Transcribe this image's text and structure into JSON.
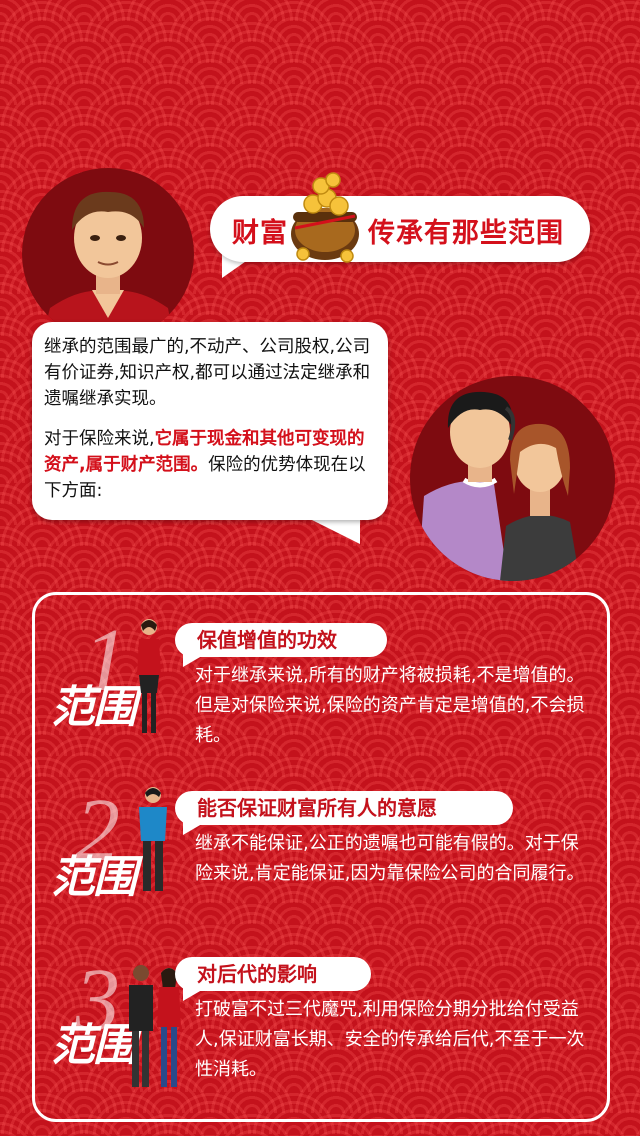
{
  "header": {
    "title_left": "财富",
    "title_right": "传承有那些范围"
  },
  "speech": {
    "para1": "继承的范围最广的,不动产、公司股权,公司有价证券,知识产权,都可以通过法定继承和遗嘱继承实现。",
    "para2_prefix": "对于保险来说,",
    "para2_highlight": "它属于现金和其他可变现的资产,属于财产范围。",
    "para2_suffix": "保险的优势体现在以下方面:"
  },
  "scopes": [
    {
      "label": "范围",
      "number": "1",
      "heading": "保值增值的功效",
      "body": "对于继承来说,所有的财产将被损耗,不是增值的。但是对保险来说,保险的资产肯定是增值的,不会损耗。"
    },
    {
      "label": "范围",
      "number": "2",
      "heading": "能否保证财富所有人的意愿",
      "body": "继承不能保证,公正的遗嘱也可能有假的。对于保险来说,肯定能保证,因为靠保险公司的合同履行。"
    },
    {
      "label": "范围",
      "number": "3",
      "heading": "对后代的影响",
      "body": "打破富不过三代魔咒,利用保险分期分批给付受益人,保证财富长期、安全的传承给后代,不至于一次性消耗。"
    }
  ],
  "colors": {
    "background": "#c4121c",
    "accent": "#d4101b",
    "bubble": "#ffffff"
  }
}
